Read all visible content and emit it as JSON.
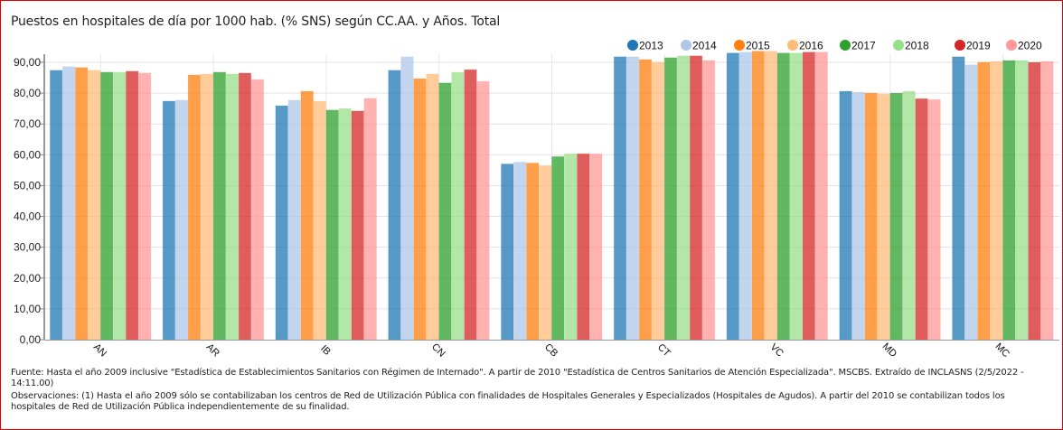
{
  "chart_data": {
    "type": "bar",
    "title": "Puestos en hospitales de día por 1000 hab. (% SNS) según CC.AA. y Años. Total",
    "xlabel": "",
    "ylabel": "",
    "ylim": [
      0,
      90
    ],
    "yticks": [
      "0,00",
      "10,00",
      "20,00",
      "30,00",
      "40,00",
      "50,00",
      "60,00",
      "70,00",
      "80,00",
      "90,00"
    ],
    "grid": true,
    "legend_position": "top-right",
    "categories": [
      "AN",
      "AR",
      "IB",
      "CN",
      "CB",
      "CT",
      "VC",
      "MD",
      "MC"
    ],
    "series": [
      {
        "name": "2013",
        "color": "#1f77b4",
        "values": [
          87.4,
          77.4,
          75.9,
          87.4,
          57.0,
          91.8,
          93.0,
          80.6,
          91.8
        ]
      },
      {
        "name": "2014",
        "color": "#aec7e8",
        "values": [
          88.6,
          77.7,
          77.7,
          91.8,
          57.6,
          91.8,
          93.3,
          80.3,
          89.2
        ]
      },
      {
        "name": "2015",
        "color": "#ff7f0e",
        "values": [
          88.3,
          85.9,
          80.6,
          84.7,
          57.3,
          90.9,
          93.6,
          80.0,
          90.0
        ]
      },
      {
        "name": "2016",
        "color": "#ffbb78",
        "values": [
          87.4,
          86.2,
          77.4,
          86.2,
          56.5,
          90.0,
          93.6,
          79.7,
          90.3
        ]
      },
      {
        "name": "2017",
        "color": "#2ca02c",
        "values": [
          86.8,
          86.8,
          74.5,
          83.3,
          59.4,
          91.5,
          93.0,
          80.0,
          90.6
        ]
      },
      {
        "name": "2018",
        "color": "#98df8a",
        "values": [
          86.8,
          86.2,
          75.0,
          86.8,
          60.3,
          92.1,
          93.0,
          80.6,
          90.6
        ]
      },
      {
        "name": "2019",
        "color": "#d62728",
        "values": [
          87.1,
          86.5,
          74.2,
          87.6,
          60.3,
          92.1,
          93.3,
          78.2,
          90.0
        ]
      },
      {
        "name": "2020",
        "color": "#ff9896",
        "values": [
          86.5,
          84.4,
          78.3,
          83.8,
          60.3,
          90.6,
          93.3,
          77.9,
          90.3
        ]
      }
    ]
  },
  "footer": {
    "source": "Fuente: Hasta el año 2009 inclusive \"Estadística de Establecimientos Sanitarios con Régimen de Internado\". A partir de 2010 \"Estadística de Centros Sanitarios de Atención Especializada\". MSCBS. Extraído de INCLASNS (2/5/2022 - 14:11.00)",
    "observations": "Observaciones: (1) Hasta el año 2009 sólo se contabilizaban los centros de Red de Utilización Pública con finalidades de Hospitales Generales y Especializados (Hospitales de Agudos). A partir del 2010 se contabilizan todos los hospitales de Red de Utilización Pública independientemente de su finalidad."
  }
}
